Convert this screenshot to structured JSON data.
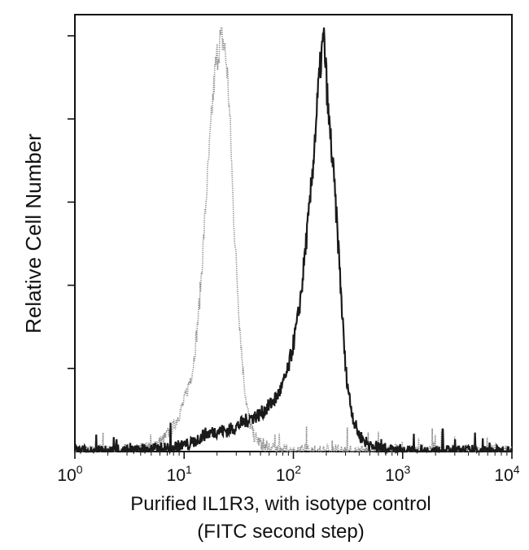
{
  "chart_data": {
    "type": "line",
    "title": "",
    "xlabel": [
      "Purified IL1R3, with isotype control",
      "(FITC second step)"
    ],
    "ylabel": "Relative Cell Number",
    "x_scale": "log",
    "xlim": [
      1,
      10000
    ],
    "ylim": [
      0,
      1
    ],
    "x_ticks": [
      {
        "value": 1,
        "base": "10",
        "exp": "0"
      },
      {
        "value": 10,
        "base": "10",
        "exp": "1"
      },
      {
        "value": 100,
        "base": "10",
        "exp": "2"
      },
      {
        "value": 1000,
        "base": "10",
        "exp": "3"
      },
      {
        "value": 10000,
        "base": "10",
        "exp": "4"
      }
    ],
    "y_ticks": [
      0,
      0.2,
      0.4,
      0.6,
      0.8,
      1.0
    ],
    "grid": false,
    "legend": "none",
    "series": [
      {
        "style": "dotted-gray",
        "color": "#8a8a8a",
        "x": [
          1,
          3,
          5,
          6.5,
          8,
          9,
          10,
          11,
          12,
          13,
          14,
          15,
          16,
          17,
          18,
          19,
          20,
          21,
          22,
          23,
          24,
          25,
          26,
          27,
          28,
          30,
          32,
          34,
          36,
          38,
          40,
          43,
          46,
          50,
          55,
          60,
          70,
          80,
          100,
          200,
          1000,
          10000
        ],
        "y": [
          0.0,
          0.0,
          0.01,
          0.03,
          0.06,
          0.09,
          0.12,
          0.16,
          0.2,
          0.28,
          0.38,
          0.5,
          0.62,
          0.72,
          0.82,
          0.9,
          0.95,
          0.98,
          1.0,
          0.98,
          0.95,
          0.9,
          0.82,
          0.72,
          0.6,
          0.45,
          0.32,
          0.22,
          0.15,
          0.1,
          0.07,
          0.04,
          0.03,
          0.02,
          0.015,
          0.01,
          0.005,
          0.003,
          0.0,
          0.0,
          0.0,
          0.0
        ]
      },
      {
        "style": "solid-black",
        "color": "#1a1a1a",
        "x": [
          1,
          3,
          5,
          8,
          12,
          15,
          20,
          25,
          30,
          40,
          50,
          60,
          70,
          80,
          90,
          100,
          110,
          120,
          130,
          140,
          150,
          160,
          170,
          180,
          190,
          200,
          210,
          220,
          240,
          260,
          280,
          300,
          330,
          360,
          400,
          450,
          500,
          600,
          700,
          1000,
          2000,
          5000,
          10000
        ],
        "y": [
          0.0,
          0.0,
          0.005,
          0.01,
          0.02,
          0.04,
          0.05,
          0.05,
          0.06,
          0.08,
          0.09,
          0.11,
          0.13,
          0.16,
          0.2,
          0.26,
          0.32,
          0.4,
          0.5,
          0.58,
          0.68,
          0.78,
          0.88,
          0.95,
          1.0,
          0.9,
          0.8,
          0.75,
          0.62,
          0.48,
          0.33,
          0.2,
          0.12,
          0.07,
          0.04,
          0.025,
          0.015,
          0.01,
          0.005,
          0.0,
          0.0,
          0.0,
          0.0
        ]
      }
    ]
  }
}
